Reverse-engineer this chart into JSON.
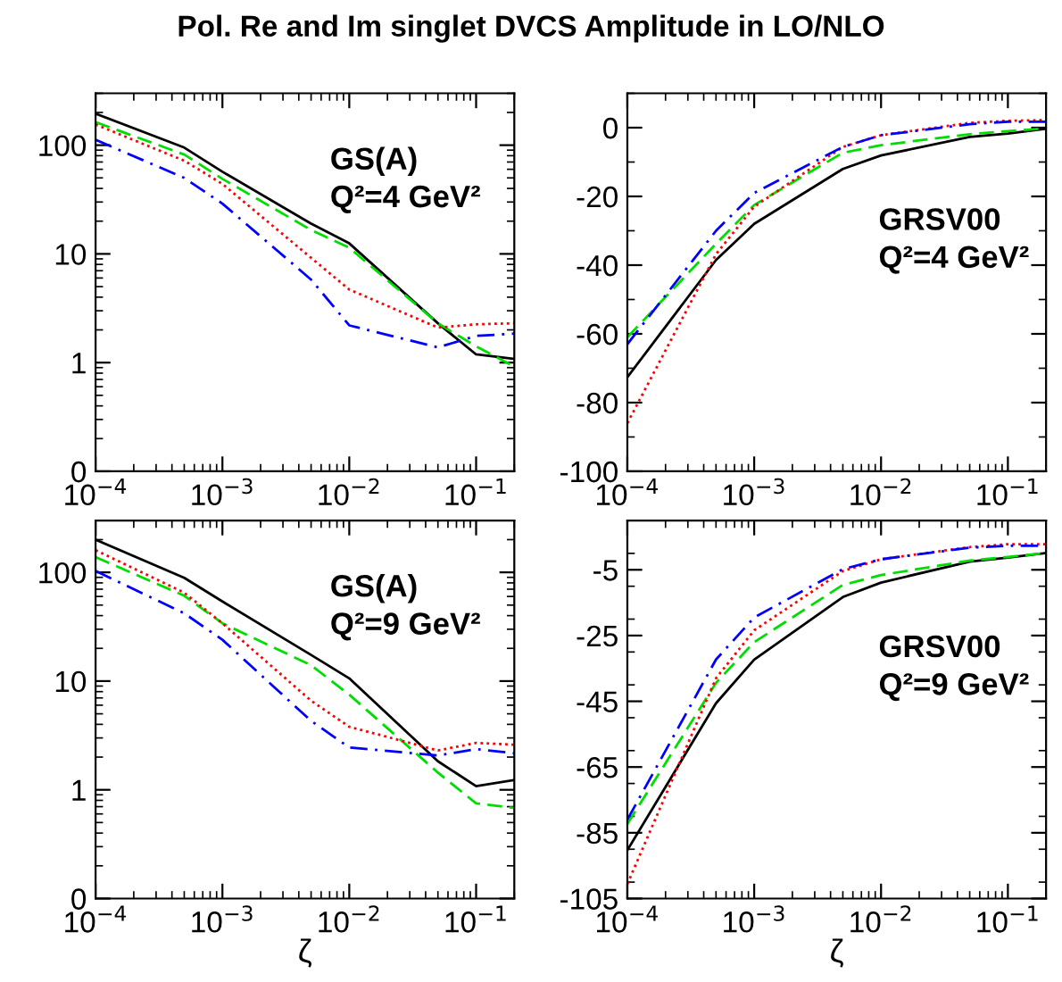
{
  "chart_data": [
    {
      "type": "line",
      "title": "Pol. Re and Im singlet DVCS Amplitude in LO/NLO",
      "x": [
        0.0001,
        0.0005,
        0.001,
        0.005,
        0.01,
        0.05,
        0.1,
        0.2
      ],
      "log": "xy",
      "xlim": [
        0.0001,
        0.2
      ],
      "xticks": [
        {
          "value": 0.0001,
          "label": "10$^{−4}$"
        },
        {
          "value": 0.001,
          "label": "10$^{−3}$"
        },
        {
          "value": 0.01,
          "label": "10$^{−2}$"
        },
        {
          "value": 0.1,
          "label": "10$^{−1}$"
        }
      ],
      "ylim": [
        0.1,
        300
      ],
      "yticks": [
        {
          "value": 0.1,
          "label": "0"
        },
        1,
        10,
        100
      ],
      "annotations": [
        "GS(A)",
        "Q²=4 GeV²"
      ],
      "series": [
        {
          "color": "#000000",
          "line_style": "solid",
          "values": [
            195,
            95,
            57,
            19,
            12.5,
            2.3,
            1.19,
            1.08
          ]
        },
        {
          "color": "#00dd00",
          "line_style": "dashed",
          "values": [
            163,
            82,
            49,
            16.6,
            11.4,
            2.3,
            1.41,
            0.92
          ]
        },
        {
          "color": "#ff0000",
          "line_style": "dotted",
          "values": [
            155,
            72,
            44,
            9.2,
            4.7,
            2.1,
            2.25,
            2.3
          ]
        },
        {
          "color": "#0000ff",
          "line_style": "dashdot",
          "values": [
            112,
            50,
            29,
            5.8,
            2.2,
            1.38,
            1.76,
            1.85
          ]
        }
      ]
    },
    {
      "type": "line",
      "x": [
        0.0001,
        0.0005,
        0.001,
        0.005,
        0.01,
        0.05,
        0.1,
        0.2
      ],
      "log": "x",
      "xlim": [
        0.0001,
        0.2
      ],
      "xticks": [
        {
          "value": 0.0001,
          "label": "10$^{−4}$"
        },
        {
          "value": 0.001,
          "label": "10$^{−3}$"
        },
        {
          "value": 0.01,
          "label": "10$^{−2}$"
        },
        {
          "value": 0.1,
          "label": "10$^{−1}$"
        }
      ],
      "ylim": [
        -100,
        10
      ],
      "yticks": [
        -100,
        -80,
        -60,
        -40,
        -20,
        0
      ],
      "annotations": [
        "GRSV00",
        "Q²=4 GeV²"
      ],
      "series": [
        {
          "color": "#000000",
          "line_style": "solid",
          "values": [
            -72.6,
            -38.5,
            -28,
            -12,
            -8.1,
            -2.7,
            -1.7,
            -0.3
          ]
        },
        {
          "color": "#00dd00",
          "line_style": "dashed",
          "values": [
            -61,
            -33.8,
            -22.5,
            -7.3,
            -5.1,
            -1.9,
            -1,
            -0.2
          ]
        },
        {
          "color": "#ff0000",
          "line_style": "dotted",
          "values": [
            -86,
            -36.8,
            -23,
            -5.6,
            -2.2,
            1.4,
            2,
            2.2
          ]
        },
        {
          "color": "#0000ff",
          "line_style": "dashdot",
          "values": [
            -63,
            -30,
            -19,
            -5.6,
            -2.2,
            1,
            1.7,
            1.7
          ]
        }
      ]
    },
    {
      "type": "line",
      "x": [
        0.0001,
        0.0005,
        0.001,
        0.005,
        0.01,
        0.05,
        0.1,
        0.2
      ],
      "log": "xy",
      "xlabel": "ζ",
      "xlim": [
        0.0001,
        0.2
      ],
      "xticks": [
        {
          "value": 0.0001,
          "label": "10$^{−4}$"
        },
        {
          "value": 0.001,
          "label": "10$^{−3}$"
        },
        {
          "value": 0.01,
          "label": "10$^{−2}$"
        },
        {
          "value": 0.1,
          "label": "10$^{−1}$"
        }
      ],
      "ylim": [
        0.1,
        300
      ],
      "yticks": [
        {
          "value": 0.1,
          "label": "0"
        },
        1,
        10,
        100
      ],
      "annotations": [
        "GS(A)",
        "Q²=9 GeV²"
      ],
      "series": [
        {
          "color": "#000000",
          "line_style": "solid",
          "values": [
            200,
            89,
            54,
            17.4,
            10.6,
            1.83,
            1.08,
            1.23
          ]
        },
        {
          "color": "#00dd00",
          "line_style": "dashed",
          "values": [
            138,
            61,
            34,
            14,
            7.5,
            1.44,
            0.75,
            0.68
          ]
        },
        {
          "color": "#ff0000",
          "line_style": "dotted",
          "values": [
            160,
            65,
            34,
            6.6,
            3.8,
            2.3,
            2.7,
            2.6
          ]
        },
        {
          "color": "#0000ff",
          "line_style": "dashdot",
          "values": [
            103,
            42,
            24,
            4.3,
            2.45,
            2.07,
            2.37,
            2.17
          ]
        }
      ]
    },
    {
      "type": "line",
      "x": [
        0.0001,
        0.0005,
        0.001,
        0.005,
        0.01,
        0.05,
        0.1,
        0.2
      ],
      "log": "x",
      "xlabel": "ζ",
      "xlim": [
        0.0001,
        0.2
      ],
      "xticks": [
        {
          "value": 0.0001,
          "label": "10$^{−4}$"
        },
        {
          "value": 0.001,
          "label": "10$^{−3}$"
        },
        {
          "value": 0.01,
          "label": "10$^{−2}$"
        },
        {
          "value": 0.1,
          "label": "10$^{−1}$"
        }
      ],
      "ylim": [
        -105,
        10
      ],
      "yticks": [
        -105,
        -85,
        -65,
        -45,
        -25,
        -5
      ],
      "annotations": [
        "GRSV00",
        "Q²=9 GeV²"
      ],
      "series": [
        {
          "color": "#000000",
          "line_style": "solid",
          "values": [
            -90.3,
            -45.6,
            -32.3,
            -13.3,
            -8.9,
            -2.5,
            -1.3,
            0.1
          ]
        },
        {
          "color": "#00dd00",
          "line_style": "dashed",
          "values": [
            -82.3,
            -39.4,
            -27,
            -9.6,
            -6.6,
            -2.2,
            -1.1,
            0.1
          ]
        },
        {
          "color": "#ff0000",
          "line_style": "dotted",
          "values": [
            -100.6,
            -38,
            -23.4,
            -5.4,
            -1.8,
            1.9,
            2.8,
            2.8
          ]
        },
        {
          "color": "#0000ff",
          "line_style": "dashdot",
          "values": [
            -81,
            -32.3,
            -19.5,
            -4.8,
            -1.8,
            1.7,
            2.3,
            2.3
          ]
        }
      ]
    }
  ]
}
